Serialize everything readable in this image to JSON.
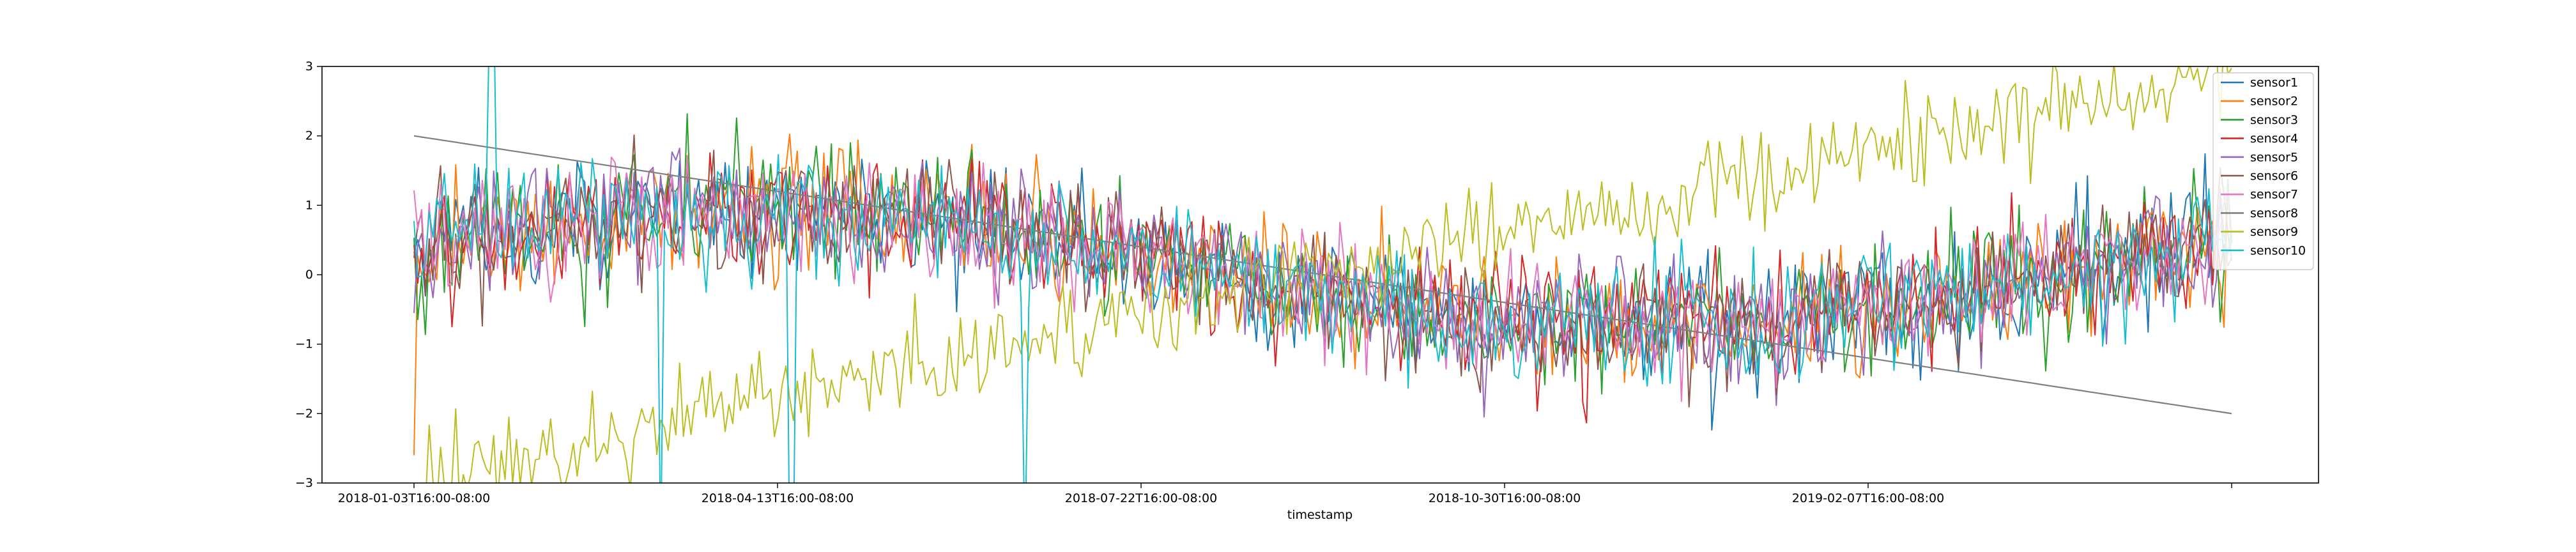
{
  "chart_data": {
    "type": "line",
    "title": "",
    "xlabel": "timestamp",
    "ylabel": "",
    "x_start": "2018-01-03T16:00-08:00",
    "x_end": "2019-05-01T16:00-08:00",
    "x_tick_labels": [
      "2018-01-03T16:00-08:00",
      "2018-04-13T16:00-08:00",
      "2018-07-22T16:00-08:00",
      "2018-10-30T16:00-08:00",
      "2019-02-07T16:00-08:00",
      ""
    ],
    "ylim": [
      -3,
      3
    ],
    "y_ticks": [
      -3,
      -2,
      -1,
      0,
      1,
      2,
      3
    ],
    "grid": false,
    "legend_position": "top-right",
    "series": [
      {
        "name": "sensor1",
        "color": "#1f77b4",
        "pattern": "sine",
        "noise": 0.45
      },
      {
        "name": "sensor2",
        "color": "#ff7f0e",
        "pattern": "sine",
        "noise": 0.45
      },
      {
        "name": "sensor3",
        "color": "#2ca02c",
        "pattern": "sine",
        "noise": 0.45
      },
      {
        "name": "sensor4",
        "color": "#d62728",
        "pattern": "sine",
        "noise": 0.45
      },
      {
        "name": "sensor5",
        "color": "#9467bd",
        "pattern": "sine",
        "noise": 0.45
      },
      {
        "name": "sensor6",
        "color": "#8c564b",
        "pattern": "sine",
        "noise": 0.45
      },
      {
        "name": "sensor7",
        "color": "#e377c2",
        "pattern": "sine",
        "noise": 0.45
      },
      {
        "name": "sensor8",
        "color": "#7f7f7f",
        "pattern": "linear",
        "start_value": 2.0,
        "end_value": -2.0,
        "noise": 0
      },
      {
        "name": "sensor9",
        "color": "#bcbd22",
        "pattern": "rising",
        "start_value": -3.0,
        "end_value": 3.0,
        "noise": 0.35
      },
      {
        "name": "sensor10",
        "color": "#17becf",
        "pattern": "sine_spikes",
        "noise": 0.45
      }
    ]
  }
}
